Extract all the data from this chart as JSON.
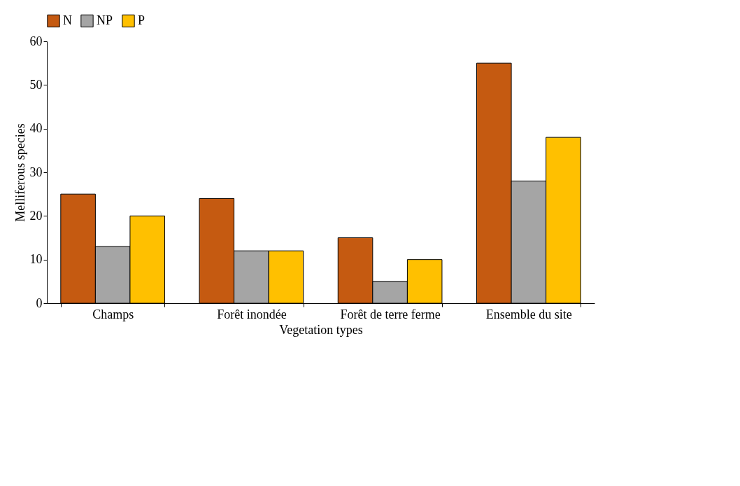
{
  "chart_data": {
    "type": "bar",
    "xlabel": "Vegetation types",
    "ylabel": "Melliferous species",
    "categories": [
      "Champs",
      "Forêt inondée",
      "Forêt de terre ferme",
      "Ensemble du site"
    ],
    "series": [
      {
        "name": "N",
        "color": "#c55a11",
        "values": [
          25,
          24,
          15,
          55
        ]
      },
      {
        "name": "NP",
        "color": "#a5a5a5",
        "values": [
          13,
          12,
          5,
          28
        ]
      },
      {
        "name": "P",
        "color": "#ffc000",
        "values": [
          20,
          12,
          10,
          38
        ]
      }
    ],
    "ylim": [
      0,
      60
    ],
    "yticks": [
      0,
      10,
      20,
      30,
      40,
      50,
      60
    ],
    "grid": false,
    "legend": "top"
  }
}
